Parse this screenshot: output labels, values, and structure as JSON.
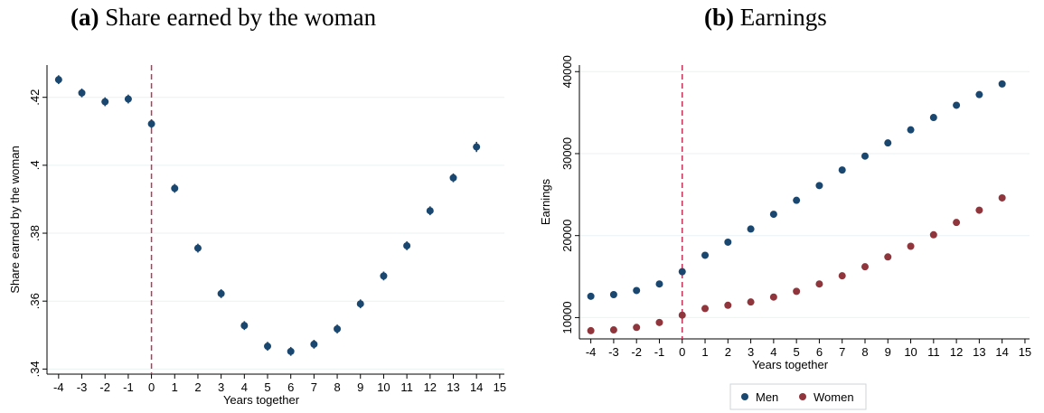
{
  "panels": {
    "a": {
      "label": "(a)",
      "title": "Share earned by the woman"
    },
    "b": {
      "label": "(b)",
      "title": "Earnings"
    }
  },
  "colors": {
    "men": "#1a476f",
    "women": "#90353b",
    "event_line": "#c0345a",
    "grid": "#eaf2f3"
  },
  "chart_data": [
    {
      "type": "scatter",
      "title": "Share earned by the woman",
      "xlabel": "Years together",
      "ylabel": "Share earned by the woman",
      "x_ticks": [
        -4,
        -3,
        -2,
        -1,
        0,
        1,
        2,
        3,
        4,
        5,
        6,
        7,
        8,
        9,
        10,
        11,
        12,
        13,
        14,
        15
      ],
      "y_ticks": [
        ".34",
        ".36",
        ".38",
        ".4",
        ".42"
      ],
      "y_tick_values": [
        0.34,
        0.36,
        0.38,
        0.4,
        0.42
      ],
      "xlim": [
        -4.5,
        15.2
      ],
      "ylim": [
        0.3385,
        0.4295
      ],
      "vline_x": 0,
      "error_bars": true,
      "legend": "none",
      "series": [
        {
          "x": [
            -4,
            -3,
            -2,
            -1,
            0,
            1,
            2,
            3,
            4,
            5,
            6,
            7,
            8,
            9,
            10,
            11,
            12,
            13,
            14
          ],
          "values": [
            0.4252,
            0.4213,
            0.4187,
            0.4195,
            0.4122,
            0.3932,
            0.3756,
            0.3622,
            0.3528,
            0.3467,
            0.3452,
            0.3473,
            0.3518,
            0.3592,
            0.3674,
            0.3763,
            0.3866,
            0.3963,
            0.4054
          ],
          "ci_half_width": [
            0.0013,
            0.0013,
            0.0013,
            0.0013,
            0.0013,
            0.0013,
            0.0013,
            0.0013,
            0.0013,
            0.0013,
            0.0013,
            0.0013,
            0.0013,
            0.0013,
            0.0013,
            0.0013,
            0.0013,
            0.0013,
            0.0015
          ]
        }
      ]
    },
    {
      "type": "scatter",
      "title": "Earnings",
      "xlabel": "Years together",
      "ylabel": "Earnings",
      "x_ticks": [
        -4,
        -3,
        -2,
        -1,
        0,
        1,
        2,
        3,
        4,
        5,
        6,
        7,
        8,
        9,
        10,
        11,
        12,
        13,
        14,
        15
      ],
      "y_ticks": [
        "10000",
        "20000",
        "30000",
        "40000"
      ],
      "y_tick_values": [
        10000,
        20000,
        30000,
        40000
      ],
      "xlim": [
        -4.5,
        15.2
      ],
      "ylim": [
        7400,
        40800
      ],
      "vline_x": 0,
      "legend": "bottom",
      "series": [
        {
          "name": "Men",
          "x": [
            -4,
            -3,
            -2,
            -1,
            0,
            1,
            2,
            3,
            4,
            5,
            6,
            7,
            8,
            9,
            10,
            11,
            12,
            13,
            14
          ],
          "values": [
            12600,
            12800,
            13300,
            14100,
            15600,
            17600,
            19200,
            20800,
            22600,
            24300,
            26100,
            28000,
            29700,
            31300,
            32900,
            34400,
            35900,
            37200,
            38500
          ]
        },
        {
          "name": "Women",
          "x": [
            -4,
            -3,
            -2,
            -1,
            0,
            1,
            2,
            3,
            4,
            5,
            6,
            7,
            8,
            9,
            10,
            11,
            12,
            13,
            14
          ],
          "values": [
            8400,
            8500,
            8800,
            9400,
            10300,
            11100,
            11500,
            11900,
            12500,
            13200,
            14100,
            15100,
            16200,
            17400,
            18700,
            20100,
            21600,
            23100,
            24600
          ]
        }
      ]
    }
  ]
}
